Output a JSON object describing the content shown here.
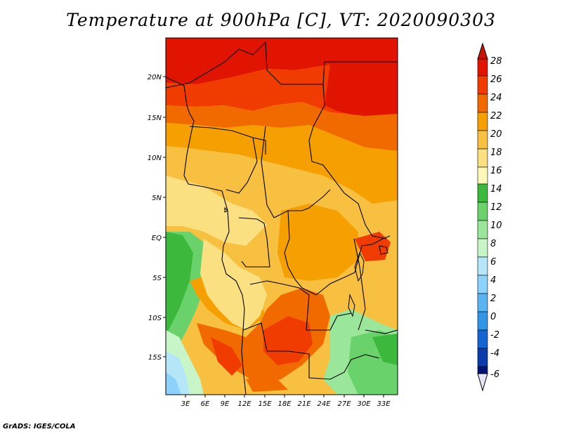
{
  "title": "Temperature at 900hPa [C], VT: 2020090303",
  "credit": "GrADS: IGES/COLA",
  "map": {
    "lon_labels": [
      "3E",
      "6E",
      "9E",
      "12E",
      "15E",
      "18E",
      "21E",
      "24E",
      "27E",
      "30E",
      "33E"
    ],
    "lat_labels": [
      "20N",
      "15N",
      "10N",
      "5N",
      "EQ",
      "5S",
      "10S",
      "15S"
    ]
  },
  "colorbar": {
    "levels": [
      "28",
      "26",
      "24",
      "22",
      "20",
      "18",
      "16",
      "14",
      "12",
      "10",
      "8",
      "6",
      "4",
      "2",
      "0",
      "-2",
      "-4",
      "-6"
    ],
    "colors": [
      "#f0e2a0",
      "#e01400",
      "#f03c00",
      "#f06a00",
      "#f5a000",
      "#f8c040",
      "#fae080",
      "#fdf8b8",
      "#3cb83c",
      "#6ad26a",
      "#9ae69a",
      "#c8f5c8",
      "#b4e6f8",
      "#8cd2fa",
      "#5ab4f0",
      "#3296e6",
      "#1464d2",
      "#0a3caa",
      "#001478"
    ]
  }
}
